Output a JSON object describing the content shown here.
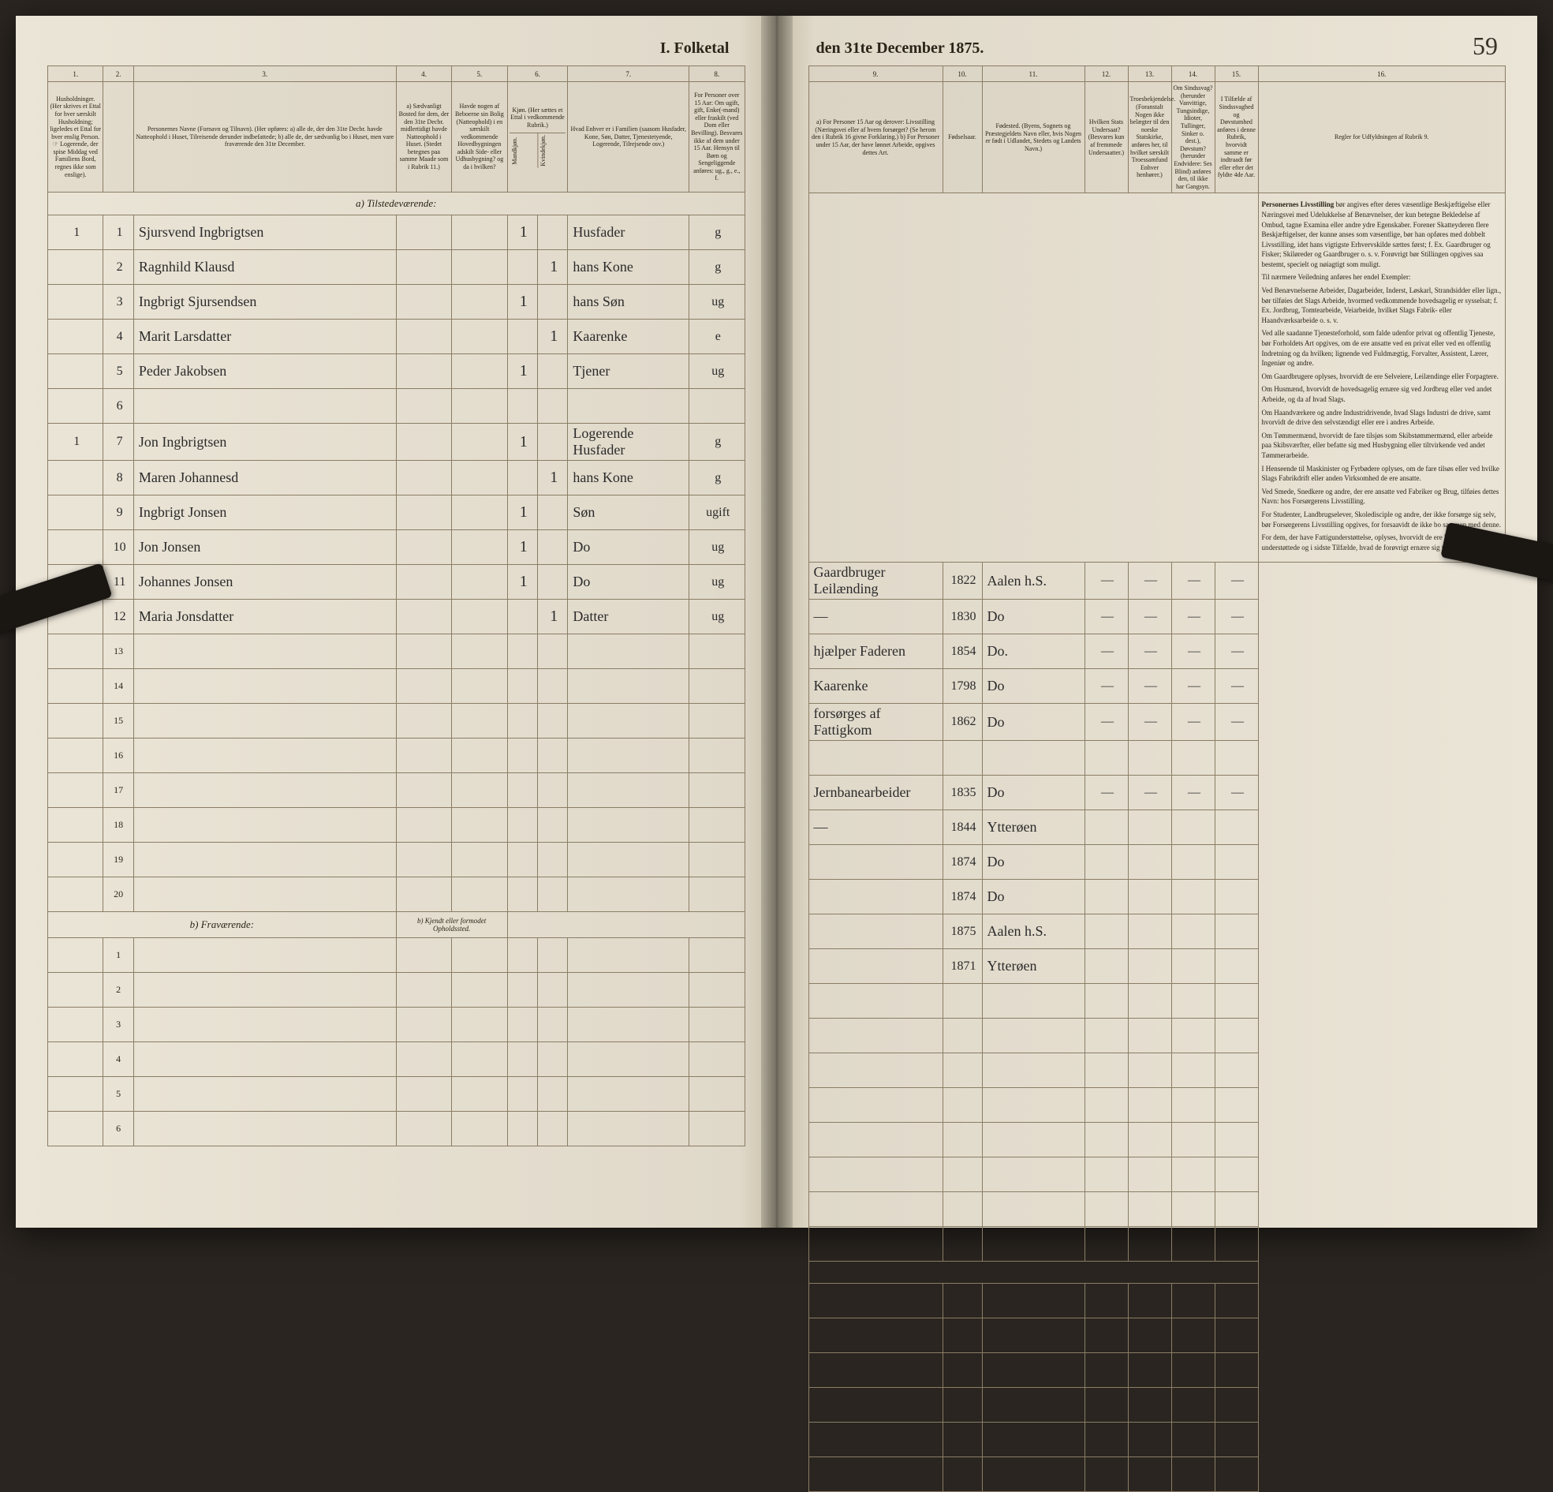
{
  "page_number": "59",
  "title_left": "I. Folketal",
  "title_right": "den 31te December 1875.",
  "columns_left": {
    "c1": "1.",
    "c2": "2.",
    "c3": "3.",
    "c4": "4.",
    "c5": "5.",
    "c6": "6.",
    "c7": "7.",
    "c8": "8."
  },
  "columns_right": {
    "c9": "9.",
    "c10": "10.",
    "c11": "11.",
    "c12": "12.",
    "c13": "13.",
    "c14": "14.",
    "c15": "15.",
    "c16": "16."
  },
  "headers_left": {
    "h1": "Husholdninger. (Her skrives et Ettal for hver særskilt Husholdning; ligeledes et Ettal for hver enslig Person. ☞ Logerende, der spise Middag ved Familiens Bord, regnes ikke som enslige).",
    "h3": "Personernes Navne (Fornavn og Tilnavn). (Her opføres: a) alle de, der den 31te Decbr. havde Natteophold i Huset, Tilreisende derunder indbefattede; b) alle de, der sædvanlig bo i Huset, men vare fraværende den 31te December.",
    "h4": "a) Sædvanligt Bosted for dem, der den 31te Decbr. midlertidigt havde Natteophold i Huset. (Stedet betegnes paa samme Maade som i Rubrik 11.)",
    "h5": "Havde nogen af Beboerne sin Bolig (Natteophold) i en særskilt vedkommende Hovedbygningen adskilt Side- eller Udhusbygning? og da i hvilken?",
    "h6": "Kjøn. (Her sættes et Ettal i vedkommende Rubrik.)",
    "h6a": "Mandkjøn.",
    "h6b": "Kvindekjøn.",
    "h7": "Hvad Enhver er i Familien (saasom Husfader, Kone, Søn, Datter, Tjenestetyende, Logerende, Tilrejsende osv.)",
    "h8": "For Personer over 15 Aar: Om ugift, gift, Enke(-mand) eller fraskilt (ved Dom eller Bevilling). Besvares ikke af dem under 15 Aar. Hensyn til Børn og Sengeliggende anføres: ug., g., e., f."
  },
  "headers_right": {
    "h9": "a) For Personer 15 Aar og derover: Livsstilling (Næringsvei eller af hvem forsørget? (Se herom den i Rubrik 16 givne Forklaring.) b) For Personer under 15 Aar, der have lønnet Arbeide, opgives dettes Art.",
    "h10": "Fødselsaar.",
    "h11": "Fødested. (Byens, Sognets og Præstegjeldets Navn eller, hvis Nogen er født i Udlandet, Stedets og Landets Navn.)",
    "h12": "Hvilken Stats Undersaat? (Besvares kun af fremmede Undersaatter.)",
    "h13": "Troesbekjendelse. (Foranstalt Nogen ikke belægter til den norske Statskirke, anføres her, til hvilket særskilt Troessamfund Enhver henhører.)",
    "h14": "Om Sindssvag? (herunder Vanvittige, Tungsindige, Idioter, Tullinger, Sinker o. dest.), Døvstum? (herunder Endvidere: Ses Blind) anføres den, til ikke har Gangsyn.",
    "h15": "I Tilfælde af Sindssvaghed og Døvstumhed anføres i denne Rubrik, hvorvidt samme er indtraadt før eller efter det fyldte 4de Aar.",
    "h16": "Regler for Udfyldningen af Rubrik 9."
  },
  "section_a": "a) Tilstedeværende:",
  "section_b": "b) Fraværende:",
  "section_b_note": "b) Kjendt eller formodet Opholdssted.",
  "rows": [
    {
      "hh": "1",
      "no": "1",
      "name": "Sjursvend Ingbrigtsen",
      "male": "1",
      "female": "",
      "rel": "Husfader",
      "mar": "g",
      "occ": "Gaardbruger Leilænding",
      "year": "1822",
      "place": "Aalen h.S.",
      "dash": "—"
    },
    {
      "hh": "",
      "no": "2",
      "name": "Ragnhild Klausd",
      "male": "",
      "female": "1",
      "rel": "hans Kone",
      "mar": "g",
      "occ": "—",
      "year": "1830",
      "place": "Do",
      "dash": "—"
    },
    {
      "hh": "",
      "no": "3",
      "name": "Ingbrigt Sjursendsen",
      "male": "1",
      "female": "",
      "rel": "hans Søn",
      "mar": "ug",
      "occ": "hjælper Faderen",
      "year": "1854",
      "place": "Do.",
      "dash": "—"
    },
    {
      "hh": "",
      "no": "4",
      "name": "Marit Larsdatter",
      "male": "",
      "female": "1",
      "rel": "Kaarenke",
      "mar": "e",
      "occ": "Kaarenke",
      "year": "1798",
      "place": "Do",
      "dash": "—"
    },
    {
      "hh": "",
      "no": "5",
      "name": "Peder Jakobsen",
      "male": "1",
      "female": "",
      "rel": "Tjener",
      "mar": "ug",
      "occ": "forsørges af Fattigkom",
      "year": "1862",
      "place": "Do",
      "dash": "—"
    },
    {
      "hh": "",
      "no": "6",
      "name": "",
      "male": "",
      "female": "",
      "rel": "",
      "mar": "",
      "occ": "",
      "year": "",
      "place": "",
      "dash": ""
    },
    {
      "hh": "1",
      "no": "7",
      "name": "Jon Ingbrigtsen",
      "male": "1",
      "female": "",
      "rel": "Logerende Husfader",
      "mar": "g",
      "occ": "Jernbanearbeider",
      "year": "1835",
      "place": "Do",
      "dash": "—"
    },
    {
      "hh": "",
      "no": "8",
      "name": "Maren Johannesd",
      "male": "",
      "female": "1",
      "rel": "hans Kone",
      "mar": "g",
      "occ": "—",
      "year": "1844",
      "place": "Ytterøen",
      "dash": ""
    },
    {
      "hh": "",
      "no": "9",
      "name": "Ingbrigt Jonsen",
      "male": "1",
      "female": "",
      "rel": "Søn",
      "mar": "ugift",
      "occ": "",
      "year": "1874",
      "place": "Do",
      "dash": ""
    },
    {
      "hh": "",
      "no": "10",
      "name": "Jon Jonsen",
      "male": "1",
      "female": "",
      "rel": "Do",
      "mar": "ug",
      "occ": "",
      "year": "1874",
      "place": "Do",
      "dash": ""
    },
    {
      "hh": "",
      "no": "11",
      "name": "Johannes Jonsen",
      "male": "1",
      "female": "",
      "rel": "Do",
      "mar": "ug",
      "occ": "",
      "year": "1875",
      "place": "Aalen h.S.",
      "dash": ""
    },
    {
      "hh": "",
      "no": "12",
      "name": "Maria Jonsdatter",
      "male": "",
      "female": "1",
      "rel": "Datter",
      "mar": "ug",
      "occ": "",
      "year": "1871",
      "place": "Ytterøen",
      "dash": ""
    }
  ],
  "empty_rows_a": [
    "13",
    "14",
    "15",
    "16",
    "17",
    "18",
    "19",
    "20"
  ],
  "empty_rows_b": [
    "1",
    "2",
    "3",
    "4",
    "5",
    "6"
  ],
  "instructions_title": "Personernes Livsstilling",
  "instructions": [
    "bør angives efter deres væsentlige Beskjæftigelse eller Næringsvei med Udelukkelse af Benævnelser, der kun betegne Bekledelse af Ombud, tagne Examina eller andre ydre Egenskaber. Forener Skatteyderen flere Beskjæftigelser, der kunne anses som væsentlige, bør han opføres med dobbelt Livsstilling, idet hans vigtigste Erhvervskilde sættes først; f. Ex. Gaardbruger og Fisker; Skiløreder og Gaardbruger o. s. v. Forøvrigt bør Stillingen opgives saa bestemt, specielt og nøiagtigt som muligt.",
    "Til nærmere Veiledning anføres her endel Exempler:",
    "Ved Benævnelserne Arbeider, Dagarbeider, Inderst, Løskarl, Strandsidder eller lign., bør tilføies det Slags Arbeide, hvormed vedkommende hovedsagelig er sysselsat; f. Ex. Jordbrug, Tomtearbeide, Veiarbeide, hvilket Slags Fabrik- eller Haandværksarbeide o. s. v.",
    "Ved alle saadanne Tjenesteforhold, som falde udenfor privat og offentlig Tjeneste, bør Forholdets Art opgives, om de ere ansatte ved en privat eller ved en offentlig Indretning og da hvilken; lignende ved Fuldmægtig, Forvalter, Assistent, Lærer, Ingeniør og andre.",
    "Om Gaardbrugere oplyses, hvorvidt de ere Selveiere, Leilændinge eller Forpagtere.",
    "Om Husmænd, hvorvidt de hovedsagelig ernære sig ved Jordbrug eller ved andet Arbeide, og da af hvad Slags.",
    "Om Haandværkere og andre Industridrivende, hvad Slags Industri de drive, samt hvorvidt de drive den selvstændigt eller ere i andres Arbeide.",
    "Om Tømmermænd, hvorvidt de fare tilsjøs som Skibstømmermænd, eller arbeide paa Skibsværfter, eller befatte sig med Husbygning eller tiltvirkende ved andet Tømmerarbeide.",
    "I Henseende til Maskinister og Fyrbødere oplyses, om de fare tilsøs eller ved hvilke Slags Fabrikdrift eller anden Virksomhed de ere ansatte.",
    "Ved Smede, Snedkere og andre, der ere ansatte ved Fabriker og Brug, tilføies dettes Navn: hos Forsørgerens Livsstilling.",
    "For Studenter, Landbrugselever, Skoledisciple og andre, der ikke forsørge sig selv, bør Forsørgerens Livsstilling opgives, for forsaavidt de ikke bo sammen med denne.",
    "For dem, der have Fattigunderstøttelse, oplyses, hvorvidt de ere helt eller delvis understøttede og i sidste Tilfælde, hvad de forøvrigt ernære sig ved."
  ]
}
